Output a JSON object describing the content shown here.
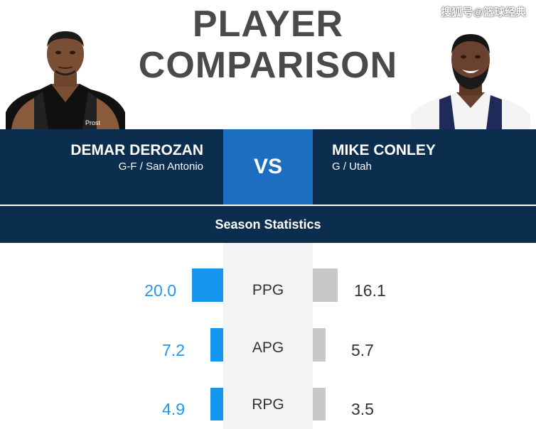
{
  "header": {
    "title_line1": "PLAYER",
    "title_line2": "COMPARISON",
    "watermark": "搜狐号@篮球经典"
  },
  "player_left": {
    "name": "DEMAR DEROZAN",
    "meta": "G-F / San Antonio",
    "jersey_text": "Prost",
    "jersey_color": "#1a1a1a"
  },
  "player_right": {
    "name": "MIKE CONLEY",
    "meta": "G / Utah",
    "jersey_color": "#ffffff"
  },
  "vs_label": "VS",
  "section_title": "Season Statistics",
  "colors": {
    "banner": "#0b2d4e",
    "vs_box": "#1c6fc0",
    "left_bar": "#1597f0",
    "right_bar": "#c8c8c8",
    "left_value": "#2196f3"
  },
  "stats": [
    {
      "label": "PPG",
      "left": "20.0",
      "right": "16.1"
    },
    {
      "label": "APG",
      "left": "7.2",
      "right": "5.7"
    },
    {
      "label": "RPG",
      "left": "4.9",
      "right": "3.5"
    }
  ]
}
